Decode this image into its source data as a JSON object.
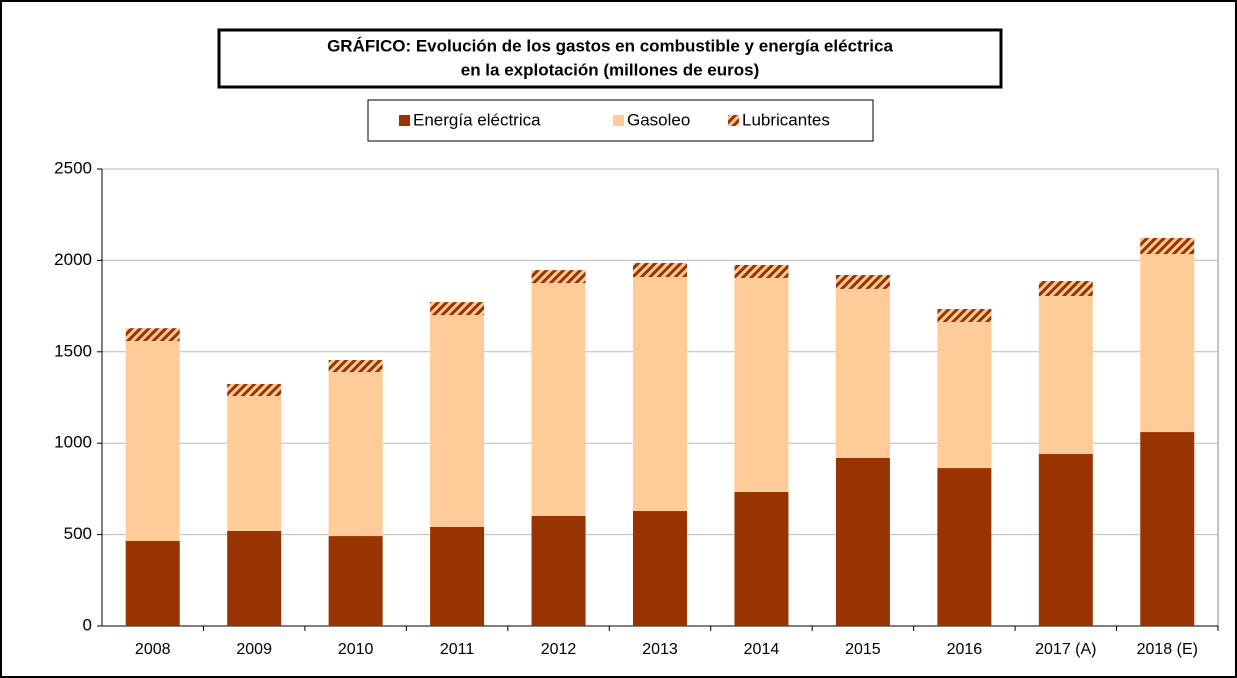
{
  "chart_data": {
    "type": "stacked_bar",
    "title": [
      "GRÁFICO: Evolución de los gastos en combustible y energía eléctrica",
      "en la explotación (millones de euros)"
    ],
    "categories": [
      "2008",
      "2009",
      "2010",
      "2011",
      "2012",
      "2013",
      "2014",
      "2015",
      "2016",
      "2017 (A)",
      "2018 (E)"
    ],
    "series": [
      {
        "name": "Energía eléctrica",
        "color": "#993300",
        "values": [
          465,
          520,
          492,
          542,
          602,
          629,
          733,
          919,
          864,
          941,
          1061
        ]
      },
      {
        "name": "Gasoleo",
        "color": "#ffcc99",
        "values": [
          1094,
          738,
          897,
          1159,
          1274,
          1280,
          1171,
          925,
          799,
          864,
          974
        ]
      },
      {
        "name": "Lubricantes",
        "color": "#993300",
        "hatch": true,
        "values": [
          70,
          66,
          66,
          71,
          71,
          77,
          71,
          76,
          71,
          82,
          88
        ]
      }
    ],
    "ylim": [
      0,
      2500
    ],
    "yticks": [
      0,
      500,
      1000,
      1500,
      2000,
      2500
    ],
    "grid": true,
    "legend": "top"
  }
}
